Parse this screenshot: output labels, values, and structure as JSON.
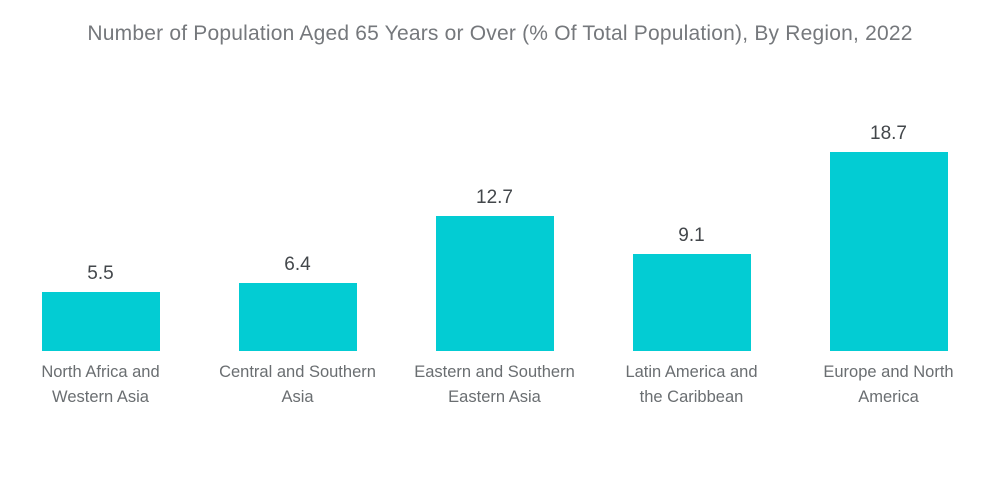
{
  "page": {
    "background": "#FFFFFF"
  },
  "colors": {
    "bar": "#03CCD3",
    "title_text": "#75787C",
    "value_text": "#43474B",
    "category_text": "#6A6E71",
    "background": "#FFFFFF"
  },
  "chart_data": {
    "type": "bar",
    "title": "Number of Population Aged 65 Years or Over (% Of Total Population), By Region, 2022",
    "categories": [
      "North Africa and Western Asia",
      "Central and Southern Asia",
      "Eastern and Southern Eastern Asia",
      "Latin America and the Caribbean",
      "Europe and North America"
    ],
    "category_label_lines": [
      [
        "North Africa and",
        "Western Asia"
      ],
      [
        "Central and Southern",
        "Asia"
      ],
      [
        "Eastern and Southern",
        "Eastern Asia"
      ],
      [
        "Latin America and",
        "the Caribbean"
      ],
      [
        "Europe and North",
        "America"
      ]
    ],
    "values": [
      5.5,
      6.4,
      12.7,
      9.1,
      18.7
    ],
    "value_labels": [
      "5.5",
      "6.4",
      "12.7",
      "9.1",
      "18.7"
    ],
    "xlabel": "",
    "ylabel": "",
    "ylim": [
      0,
      20
    ],
    "grid": false,
    "legend": false,
    "orientation": "vertical",
    "bar_color": "#03CCD3"
  }
}
